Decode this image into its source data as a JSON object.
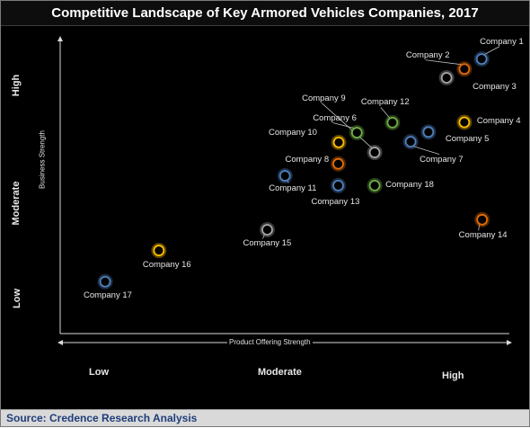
{
  "title": "Competitive Landscape of Key Armored Vehicles Companies, 2017",
  "source": "Source: Credence Research Analysis",
  "chart_data": {
    "type": "scatter",
    "title": "Competitive Landscape of Key Armored Vehicles Companies, 2017",
    "xlabel": "Product Offering Strength",
    "ylabel": "Business Strength",
    "x_ticks": [
      "Low",
      "Moderate",
      "High"
    ],
    "y_ticks": [
      "Low",
      "Moderate",
      "High"
    ],
    "xlim": [
      0,
      100
    ],
    "ylim": [
      0,
      100
    ],
    "grid": false,
    "points": [
      {
        "name": "Company 1",
        "x": 88.3,
        "y": 84.6,
        "color": "#4f81bd"
      },
      {
        "name": "Company 2",
        "x": 84.6,
        "y": 81.5,
        "color": "#e46c0a"
      },
      {
        "name": "Company 3",
        "x": 80.8,
        "y": 78.8,
        "color": "#a6a6a6"
      },
      {
        "name": "Company 4",
        "x": 84.6,
        "y": 65.1,
        "color": "#ffc000"
      },
      {
        "name": "Company 5",
        "x": 76.9,
        "y": 62.1,
        "color": "#4f81bd"
      },
      {
        "name": "Company 6",
        "x": 61.6,
        "y": 61.9,
        "color": "#70ad47"
      },
      {
        "name": "Company 7",
        "x": 73.1,
        "y": 59.1,
        "color": "#4f81bd"
      },
      {
        "name": "Company 8",
        "x": 57.6,
        "y": 52.3,
        "color": "#e46c0a"
      },
      {
        "name": "Company 9",
        "x": 65.4,
        "y": 55.8,
        "color": "#a6a6a6"
      },
      {
        "name": "Company 10",
        "x": 57.7,
        "y": 58.9,
        "color": "#ffc000"
      },
      {
        "name": "Company 11",
        "x": 46.2,
        "y": 48.6,
        "color": "#4f81bd"
      },
      {
        "name": "Company 12",
        "x": 69.2,
        "y": 65.0,
        "color": "#70ad47"
      },
      {
        "name": "Company 13",
        "x": 57.6,
        "y": 45.6,
        "color": "#4f81bd"
      },
      {
        "name": "Company 14",
        "x": 88.4,
        "y": 35.1,
        "color": "#e46c0a"
      },
      {
        "name": "Company 15",
        "x": 42.4,
        "y": 32.0,
        "color": "#a6a6a6"
      },
      {
        "name": "Company 16",
        "x": 19.2,
        "y": 25.6,
        "color": "#ffc000"
      },
      {
        "name": "Company 17",
        "x": 7.7,
        "y": 16.0,
        "color": "#4f81bd"
      },
      {
        "name": "Company 18",
        "x": 65.4,
        "y": 45.6,
        "color": "#70ad47"
      }
    ]
  }
}
